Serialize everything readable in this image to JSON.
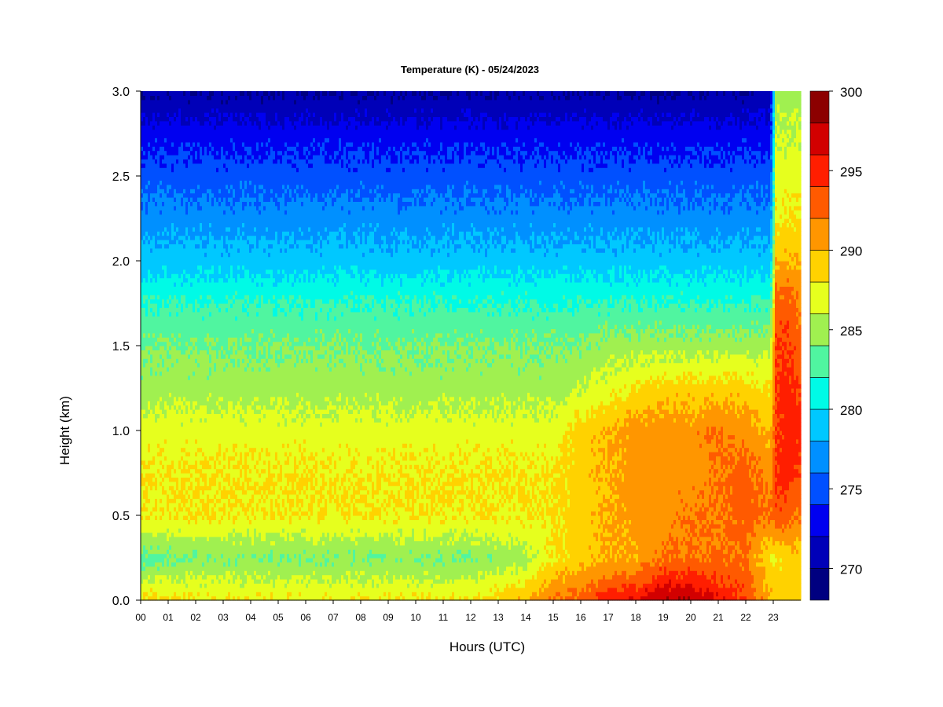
{
  "chart_data": {
    "type": "heatmap",
    "title": "Temperature (K) - 05/24/2023",
    "xlabel": "Hours (UTC)",
    "ylabel": "Height (km)",
    "xlim": [
      0,
      24
    ],
    "ylim": [
      0,
      3.0
    ],
    "x_ticks": [
      "00",
      "01",
      "02",
      "03",
      "04",
      "05",
      "06",
      "07",
      "08",
      "09",
      "10",
      "11",
      "12",
      "13",
      "14",
      "15",
      "16",
      "17",
      "18",
      "19",
      "20",
      "21",
      "22",
      "23"
    ],
    "y_ticks": [
      "0.0",
      "0.5",
      "1.0",
      "1.5",
      "2.0",
      "2.5",
      "3.0"
    ],
    "heights_km": [
      0.0,
      0.25,
      0.5,
      0.75,
      1.0,
      1.25,
      1.5,
      1.75,
      2.0,
      2.25,
      2.5,
      2.75,
      3.0
    ],
    "hours": [
      0,
      2,
      4,
      6,
      8,
      10,
      12,
      14,
      15,
      16,
      17,
      18,
      19,
      20,
      21,
      22,
      22.9,
      23.1,
      23.5,
      23.9
    ],
    "temperature_K": [
      [
        289,
        283,
        288,
        288,
        287,
        285,
        284,
        282,
        279,
        277,
        275,
        273,
        270
      ],
      [
        288,
        284,
        288,
        288,
        287,
        285,
        284,
        282,
        279,
        277,
        275,
        273,
        270
      ],
      [
        288,
        284,
        288,
        288,
        287,
        285,
        284,
        282,
        279,
        277,
        275,
        273,
        270
      ],
      [
        288,
        284,
        288,
        288,
        287,
        285,
        284,
        282,
        279,
        277,
        275,
        273,
        270
      ],
      [
        288,
        284,
        288,
        288,
        287,
        285,
        284,
        282,
        279,
        277,
        275,
        273,
        270
      ],
      [
        288,
        284,
        288,
        288,
        287,
        285,
        284,
        282,
        279,
        277,
        275,
        273,
        270
      ],
      [
        288,
        284,
        288,
        288,
        287,
        285,
        284,
        282,
        279,
        277,
        275,
        273,
        270
      ],
      [
        290,
        285,
        288,
        288,
        287,
        285,
        284,
        282,
        279,
        277,
        275,
        273,
        270
      ],
      [
        292,
        288,
        288,
        288,
        287,
        285,
        284,
        282,
        279,
        277,
        275,
        273,
        270
      ],
      [
        293,
        289,
        289,
        289,
        289,
        286,
        284,
        282,
        279,
        277,
        275,
        273,
        270
      ],
      [
        295,
        290,
        290,
        290,
        290,
        287,
        285,
        282,
        279,
        277,
        275,
        273,
        270
      ],
      [
        296,
        290,
        291,
        291,
        291,
        288,
        285,
        282,
        279,
        277,
        275,
        273,
        270
      ],
      [
        298,
        292,
        291,
        291,
        291,
        289,
        285,
        282,
        279,
        277,
        275,
        273,
        270
      ],
      [
        298,
        292,
        292,
        291,
        291,
        289,
        285,
        282,
        279,
        277,
        275,
        273,
        270
      ],
      [
        296,
        292,
        292,
        292,
        292,
        289,
        285,
        282,
        279,
        277,
        275,
        273,
        270
      ],
      [
        294,
        292,
        293,
        293,
        291,
        289,
        285,
        282,
        279,
        277,
        275,
        273,
        270
      ],
      [
        290,
        288,
        292,
        291,
        290,
        288,
        285,
        282,
        279,
        277,
        275,
        273,
        271
      ],
      [
        289,
        288,
        294,
        294,
        294,
        294,
        294,
        293,
        290,
        288,
        287,
        286,
        285
      ],
      [
        289,
        289,
        293,
        295,
        295,
        295,
        294,
        293,
        290,
        288,
        287,
        286,
        285
      ],
      [
        289,
        289,
        292,
        294,
        295,
        294,
        293,
        292,
        290,
        288,
        287,
        286,
        285
      ]
    ],
    "colorbar": {
      "min": 268,
      "max": 300,
      "step": 2,
      "ticks": [
        "270",
        "275",
        "280",
        "285",
        "290",
        "295",
        "300"
      ],
      "colors": [
        "#000080",
        "#0000b8",
        "#0000f0",
        "#0050ff",
        "#0090ff",
        "#00c8ff",
        "#00fae6",
        "#50f5a0",
        "#a0f050",
        "#e6ff1e",
        "#ffd200",
        "#ff9600",
        "#ff5a00",
        "#ff1e00",
        "#d20000",
        "#8c0000"
      ]
    }
  }
}
